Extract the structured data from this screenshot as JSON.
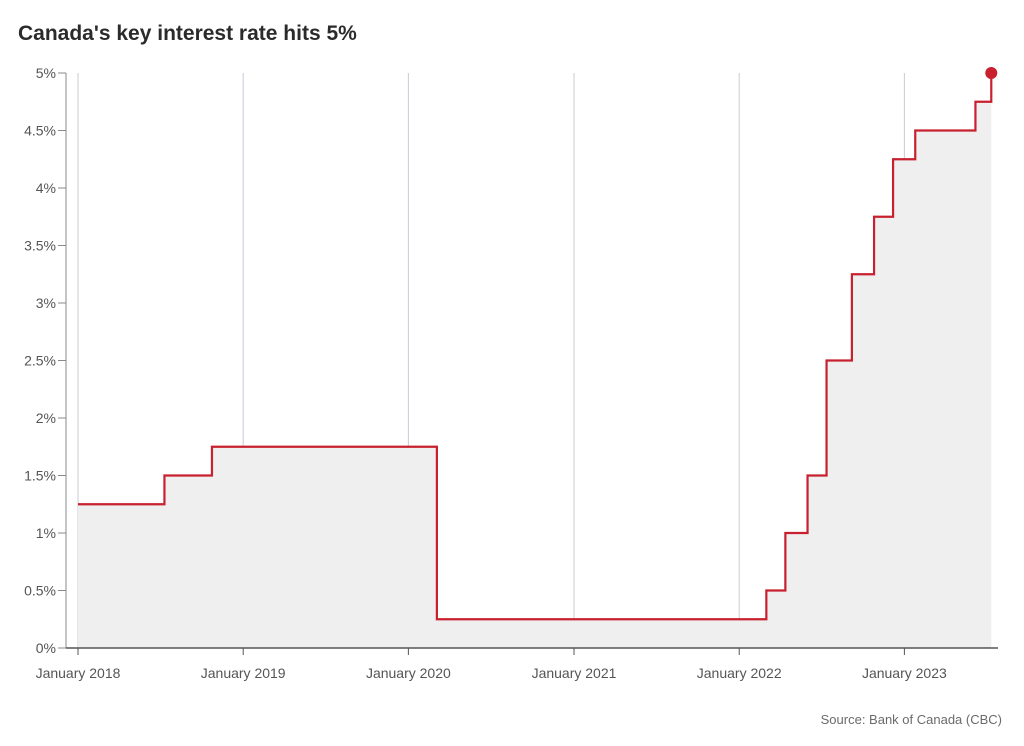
{
  "title": "Canada's key interest rate hits 5%",
  "source": "Source: Bank of Canada (CBC)",
  "chart_data": {
    "type": "area",
    "title": "Canada's key interest rate hits 5%",
    "step": true,
    "ylim": [
      0,
      5
    ],
    "y_unit": "%",
    "y_ticks": [
      0,
      0.5,
      1,
      1.5,
      2,
      2.5,
      3,
      3.5,
      4,
      4.5,
      5
    ],
    "y_tick_labels": [
      "0%",
      "0.5%",
      "1%",
      "1.5%",
      "2%",
      "2.5%",
      "3%",
      "3.5%",
      "4%",
      "4.5%",
      "5%"
    ],
    "x_range": [
      "2018-01-01",
      "2023-07-12"
    ],
    "x_ticks": [
      "2018-01-01",
      "2019-01-01",
      "2020-01-01",
      "2021-01-01",
      "2022-01-01",
      "2023-01-01"
    ],
    "x_tick_labels": [
      "January 2018",
      "January 2019",
      "January 2020",
      "January 2021",
      "January 2022",
      "January 2023"
    ],
    "grid": "vertical",
    "line_color": "#c8202f",
    "fill_color": "#efefef",
    "points": [
      {
        "x": "2018-01-01",
        "y": 1.25
      },
      {
        "x": "2018-07-11",
        "y": 1.5
      },
      {
        "x": "2018-10-24",
        "y": 1.75
      },
      {
        "x": "2020-03-04",
        "y": 0.25
      },
      {
        "x": "2022-03-02",
        "y": 0.5
      },
      {
        "x": "2022-04-13",
        "y": 1.0
      },
      {
        "x": "2022-06-01",
        "y": 1.5
      },
      {
        "x": "2022-07-13",
        "y": 2.5
      },
      {
        "x": "2022-09-07",
        "y": 3.25
      },
      {
        "x": "2022-10-26",
        "y": 3.75
      },
      {
        "x": "2022-12-07",
        "y": 4.25
      },
      {
        "x": "2023-01-25",
        "y": 4.5
      },
      {
        "x": "2023-06-07",
        "y": 4.75
      },
      {
        "x": "2023-07-12",
        "y": 5.0
      }
    ]
  }
}
